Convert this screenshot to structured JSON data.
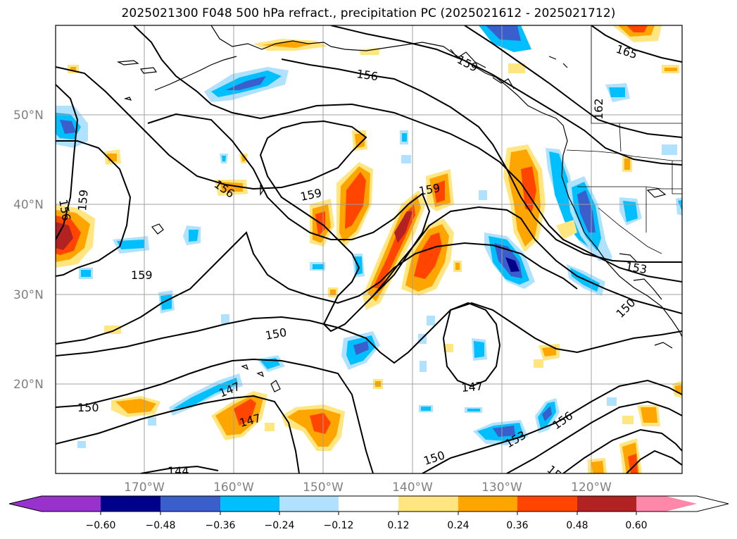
{
  "title": "2025021300 F048 500 hPa refract., precipitation PC (2025021612 - 2025021712)",
  "lat_labels": [
    "50°N",
    "40°N",
    "30°N",
    "20°N"
  ],
  "lon_labels": [
    "170°W",
    "160°W",
    "150°W",
    "140°W",
    "130°W",
    "120°W"
  ],
  "contour_labels": [
    "165",
    "156",
    "159",
    "162",
    "159",
    "159",
    "156",
    "156",
    "159",
    "159",
    "150",
    "153",
    "150",
    "147",
    "150",
    "147",
    "147",
    "153",
    "156",
    "150",
    "144",
    "15"
  ],
  "colorbar": {
    "ticks": [
      "−0.60",
      "−0.48",
      "−0.36",
      "−0.24",
      "−0.12",
      "0.12",
      "0.24",
      "0.36",
      "0.48",
      "0.60"
    ],
    "colors": [
      "#9932cc",
      "#00008b",
      "#3a5fcd",
      "#00bfff",
      "#b0e2ff",
      "#ffffff",
      "#ffe680",
      "#ffa500",
      "#ff4500",
      "#b22222",
      "#ff88aa"
    ]
  },
  "palette": {
    "blue_light": "#b0e2ff",
    "blue": "#00bfff",
    "blue_mid": "#3a5fcd",
    "blue_dark": "#00008b",
    "yellow": "#ffe680",
    "orange": "#ffa500",
    "red_orange": "#ff4500",
    "dark_red": "#b22222"
  }
}
